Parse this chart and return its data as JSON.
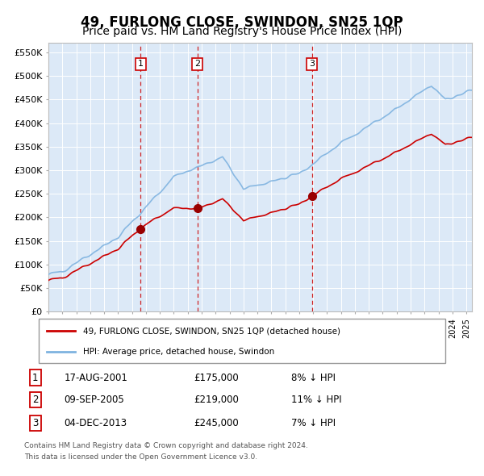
{
  "title": "49, FURLONG CLOSE, SWINDON, SN25 1QP",
  "subtitle": "Price paid vs. HM Land Registry's House Price Index (HPI)",
  "ylim": [
    0,
    570000
  ],
  "ytick_labels": [
    "£0",
    "£50K",
    "£100K",
    "£150K",
    "£200K",
    "£250K",
    "£300K",
    "£350K",
    "£400K",
    "£450K",
    "£500K",
    "£550K"
  ],
  "sale_prices": [
    175000,
    219000,
    245000
  ],
  "sale_labels": [
    "1",
    "2",
    "3"
  ],
  "sale_label_pcts": [
    "8% ↓ HPI",
    "11% ↓ HPI",
    "7% ↓ HPI"
  ],
  "sale_label_dates_str": [
    "17-AUG-2001",
    "09-SEP-2005",
    "04-DEC-2013"
  ],
  "sale_decimal_years": [
    2001.625,
    2005.692,
    2013.921
  ],
  "legend_line1": "49, FURLONG CLOSE, SWINDON, SN25 1QP (detached house)",
  "legend_line2": "HPI: Average price, detached house, Swindon",
  "footnote1": "Contains HM Land Registry data © Crown copyright and database right 2024.",
  "footnote2": "This data is licensed under the Open Government Licence v3.0.",
  "plot_bg_color": "#dce9f7",
  "grid_color": "#ffffff",
  "hpi_line_color": "#7fb3e0",
  "sold_line_color": "#cc0000",
  "sold_dot_color": "#990000",
  "vline_color": "#cc0000",
  "title_fontsize": 12,
  "subtitle_fontsize": 10
}
